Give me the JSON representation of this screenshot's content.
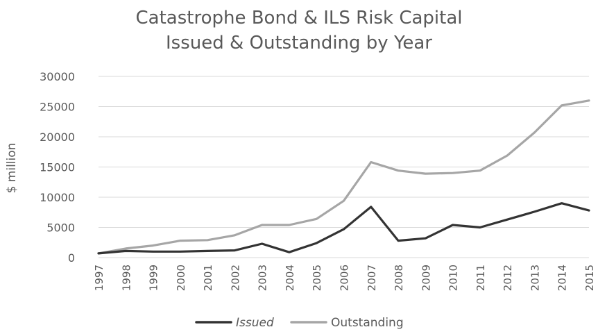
{
  "chart_data": {
    "type": "line",
    "title_lines": [
      "Catastrophe Bond & ILS Risk Capital",
      "Issued & Outstanding by Year"
    ],
    "xlabel": "",
    "ylabel": "$ million",
    "ylim": [
      0,
      30000
    ],
    "yticks": [
      0,
      5000,
      10000,
      15000,
      20000,
      25000,
      30000
    ],
    "grid": true,
    "legend_position": "bottom",
    "categories": [
      "1997",
      "1998",
      "1999",
      "2000",
      "2001",
      "2002",
      "2003",
      "2004",
      "2005",
      "2006",
      "2007",
      "2008",
      "2009",
      "2010",
      "2011",
      "2012",
      "2013",
      "2014",
      "2015"
    ],
    "series": [
      {
        "name": "Issued",
        "color": "#333333",
        "values": [
          700,
          1100,
          1000,
          1000,
          1100,
          1200,
          2300,
          900,
          2400,
          4700,
          8400,
          2800,
          3200,
          5400,
          5000,
          6300,
          7600,
          9000,
          7800
        ]
      },
      {
        "name": "Outstanding",
        "color": "#a6a6a6",
        "values": [
          700,
          1500,
          2000,
          2800,
          2900,
          3700,
          5400,
          5400,
          6400,
          9400,
          15800,
          14400,
          13900,
          14000,
          14400,
          16900,
          20700,
          25200,
          26000
        ]
      }
    ],
    "gridline_color": "#d9d9d9",
    "text_color": "#595959"
  }
}
